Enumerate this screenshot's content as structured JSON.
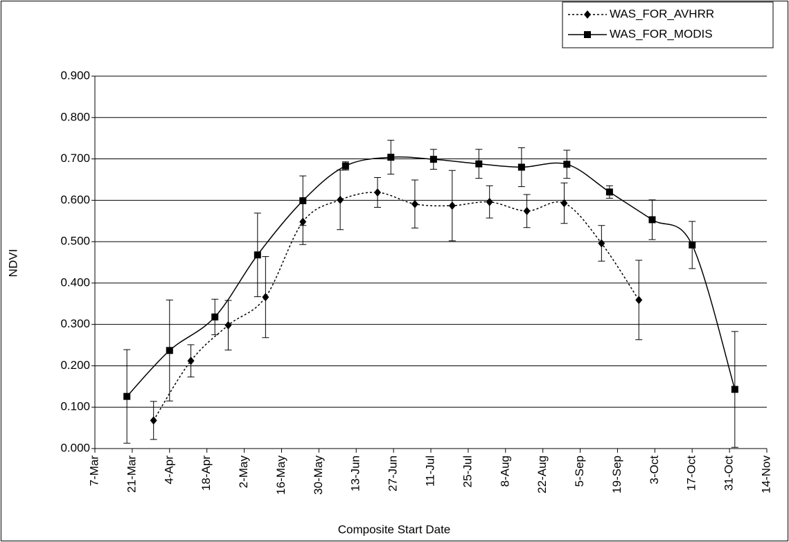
{
  "chart_data": {
    "type": "line",
    "x_label": "Composite Start Date",
    "y_label": "NDVI",
    "xlim": [
      "7-Mar",
      "14-Nov"
    ],
    "xticks": [
      "7-Mar",
      "21-Mar",
      "4-Apr",
      "18-Apr",
      "2-May",
      "16-May",
      "30-May",
      "13-Jun",
      "27-Jun",
      "11-Jul",
      "25-Jul",
      "8-Aug",
      "22-Aug",
      "5-Sep",
      "19-Sep",
      "3-Oct",
      "17-Oct",
      "31-Oct",
      "14-Nov"
    ],
    "ylim": [
      0,
      0.9
    ],
    "yticks": [
      {
        "value": 0,
        "label": "0.000"
      },
      {
        "value": 0.1,
        "label": "0.100"
      },
      {
        "value": 0.2,
        "label": "0.200"
      },
      {
        "value": 0.3,
        "label": "0.300"
      },
      {
        "value": 0.4,
        "label": "0.400"
      },
      {
        "value": 0.5,
        "label": "0.500"
      },
      {
        "value": 0.6,
        "label": "0.600"
      },
      {
        "value": 0.7,
        "label": "0.700"
      },
      {
        "value": 0.8,
        "label": "0.800"
      },
      {
        "value": 0.9,
        "label": "0.900"
      }
    ],
    "grid": true,
    "legend": "top-right",
    "series": [
      {
        "name": "WAS_FOR_AVHRR",
        "color": "#000000",
        "line_style": "dotted",
        "marker": "diamond",
        "x": [
          "29-Mar",
          "12-Apr",
          "26-Apr",
          "10-May",
          "24-May",
          "7-Jun",
          "21-Jun",
          "5-Jul",
          "19-Jul",
          "2-Aug",
          "16-Aug",
          "30-Aug",
          "13-Sep",
          "27-Sep"
        ],
        "values": [
          0.068,
          0.212,
          0.298,
          0.366,
          0.548,
          0.601,
          0.619,
          0.591,
          0.587,
          0.596,
          0.574,
          0.593,
          0.496,
          0.359
        ],
        "errors": [
          0.046,
          0.039,
          0.06,
          0.098,
          0.055,
          0.072,
          0.036,
          0.058,
          0.085,
          0.039,
          0.04,
          0.049,
          0.043,
          0.096
        ]
      },
      {
        "name": "WAS_FOR_MODIS",
        "color": "#000000",
        "line_style": "solid",
        "marker": "square",
        "x": [
          "19-Mar",
          "4-Apr",
          "21-Apr",
          "7-May",
          "24-May",
          "9-Jun",
          "26-Jun",
          "12-Jul",
          "29-Jul",
          "14-Aug",
          "31-Aug",
          "16-Sep",
          "2-Oct",
          "17-Oct",
          "2-Nov"
        ],
        "values": [
          0.126,
          0.237,
          0.318,
          0.468,
          0.599,
          0.683,
          0.704,
          0.699,
          0.688,
          0.68,
          0.687,
          0.62,
          0.553,
          0.492,
          0.143
        ],
        "errors": [
          0.113,
          0.122,
          0.043,
          0.101,
          0.06,
          0.01,
          0.041,
          0.024,
          0.035,
          0.047,
          0.034,
          0.015,
          0.048,
          0.057,
          0.14
        ]
      }
    ]
  }
}
